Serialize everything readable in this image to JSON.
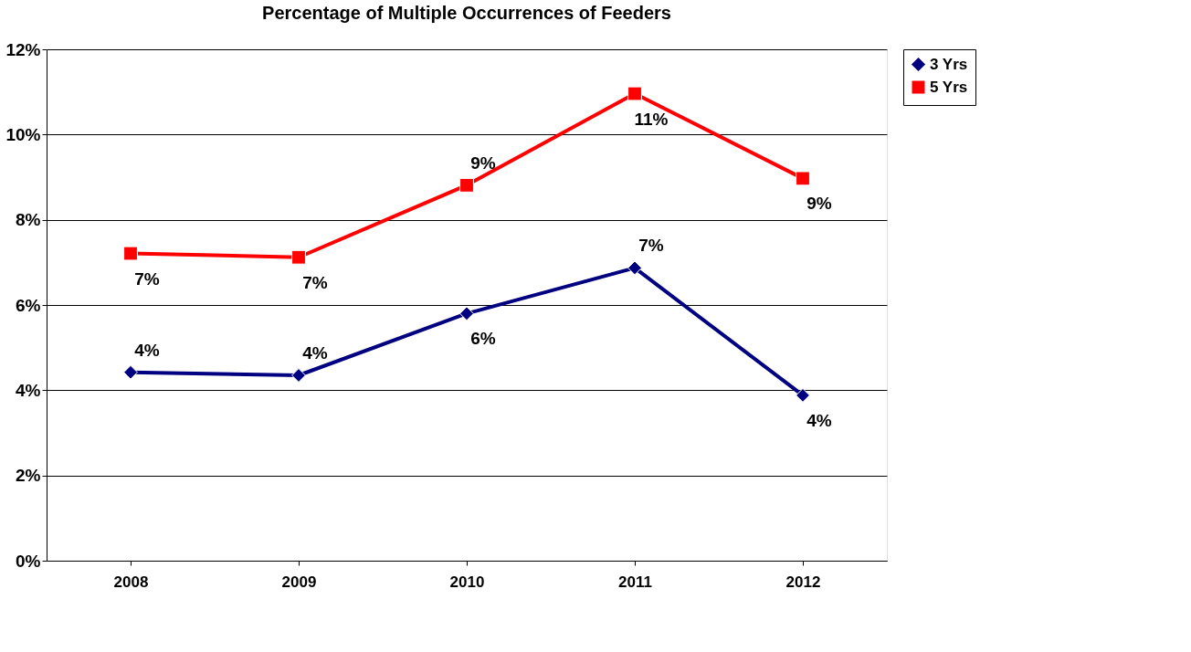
{
  "chart_data": {
    "type": "line",
    "title": "Percentage of Multiple Occurrences of Feeders",
    "categories": [
      "2008",
      "2009",
      "2010",
      "2011",
      "2012"
    ],
    "series": [
      {
        "name": "3 Yrs",
        "color": "#000080",
        "marker": "diamond",
        "values": [
          4.42,
          4.35,
          5.8,
          6.87,
          3.88
        ],
        "value_labels": [
          "4%",
          "4%",
          "6%",
          "7%",
          "4%"
        ]
      },
      {
        "name": "5 Yrs",
        "color": "#ff0000",
        "marker": "square",
        "values": [
          7.21,
          7.12,
          8.81,
          10.96,
          8.97
        ],
        "value_labels": [
          "7%",
          "7%",
          "9%",
          "11%",
          "9%"
        ]
      }
    ],
    "ylim": [
      0,
      12
    ],
    "yticks": [
      {
        "value": 0,
        "label": "0%"
      },
      {
        "value": 2,
        "label": "2%"
      },
      {
        "value": 4,
        "label": "4%"
      },
      {
        "value": 6,
        "label": "6%"
      },
      {
        "value": 8,
        "label": "8%"
      },
      {
        "value": 10,
        "label": "10%"
      },
      {
        "value": 12,
        "label": "12%"
      }
    ],
    "grid": "y",
    "legend": "right",
    "line_style": "solid"
  }
}
